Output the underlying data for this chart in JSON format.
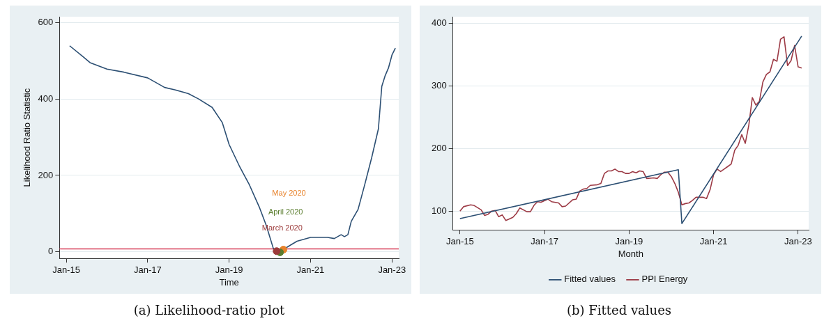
{
  "chart_data": [
    {
      "type": "line",
      "title": "(a) Likelihood-ratio plot",
      "xlabel": "Time",
      "ylabel": "Likelihood Ratio Statistic",
      "xlim": [
        "2014-11",
        "2023-03"
      ],
      "ylim": [
        -17,
        615
      ],
      "xticks": [
        {
          "value": "2015-01",
          "label": "Jan-15"
        },
        {
          "value": "2017-01",
          "label": "Jan-17"
        },
        {
          "value": "2019-01",
          "label": "Jan-19"
        },
        {
          "value": "2021-01",
          "label": "Jan-21"
        },
        {
          "value": "2023-01",
          "label": "Jan-23"
        }
      ],
      "yticks": [
        0,
        200,
        400,
        600
      ],
      "grid": "y",
      "legend": false,
      "ref_lines": [
        {
          "axis": "y",
          "value": 8,
          "color": "#d6405a"
        }
      ],
      "series": [
        {
          "type": "line",
          "color": "#2c4f73",
          "marker": "none",
          "x": [
            "2015-02",
            "2015-06",
            "2015-08",
            "2016-01",
            "2016-06",
            "2017-01",
            "2017-06",
            "2017-09",
            "2018-01",
            "2018-04",
            "2018-08",
            "2018-11",
            "2019-01",
            "2019-04",
            "2019-07",
            "2019-10",
            "2019-12",
            "2020-02",
            "2020-03",
            "2020-04",
            "2020-05",
            "2020-06",
            "2020-09",
            "2021-01",
            "2021-06",
            "2021-08",
            "2021-10",
            "2021-11",
            "2021-12",
            "2022-01",
            "2022-03",
            "2022-05",
            "2022-07",
            "2022-09",
            "2022-10",
            "2022-11",
            "2022-12",
            "2023-01",
            "2023-02"
          ],
          "values": [
            539,
            510,
            495,
            478,
            470,
            455,
            430,
            424,
            414,
            400,
            378,
            338,
            281,
            225,
            175,
            115,
            68,
            10,
            2,
            0,
            6,
            12,
            28,
            38,
            38,
            35,
            45,
            40,
            45,
            80,
            111,
            177,
            246,
            322,
            433,
            461,
            482,
            515,
            533
          ]
        },
        {
          "type": "scatter",
          "name": "March 2020",
          "color": "#9c3a3a",
          "marker": "circle",
          "x": [
            "2020-03"
          ],
          "values": [
            2
          ]
        },
        {
          "type": "scatter",
          "name": "April 2020",
          "color": "#5a7d2e",
          "marker": "circle",
          "x": [
            "2020-04"
          ],
          "values": [
            -1
          ]
        },
        {
          "type": "scatter",
          "name": "May 2020",
          "color": "#e8822a",
          "marker": "circle",
          "x": [
            "2020-05"
          ],
          "values": [
            6
          ]
        }
      ]
    },
    {
      "type": "line",
      "title": "(b) Fitted values",
      "xlabel": "Month",
      "xlim": [
        "2014-11",
        "2023-04"
      ],
      "ylim": [
        70,
        410
      ],
      "xticks": [
        {
          "value": "2015-01",
          "label": "Jan-15"
        },
        {
          "value": "2017-01",
          "label": "Jan-17"
        },
        {
          "value": "2019-01",
          "label": "Jan-19"
        },
        {
          "value": "2021-01",
          "label": "Jan-21"
        },
        {
          "value": "2023-01",
          "label": "Jan-23"
        }
      ],
      "yticks": [
        100,
        200,
        300,
        400
      ],
      "grid": "y",
      "legend": "bottom",
      "series": [
        {
          "type": "line",
          "name": "Fitted values",
          "color": "#2c4f73",
          "marker": "none",
          "x": [
            "2015-01",
            "2020-03",
            "2020-04",
            "2023-02"
          ],
          "values": [
            88,
            166,
            80,
            379
          ]
        },
        {
          "type": "line",
          "name": "PPI Energy",
          "color": "#9c3a45",
          "marker": "none",
          "x": [
            "2015-01",
            "2015-02",
            "2015-04",
            "2015-05",
            "2015-07",
            "2015-08",
            "2015-09",
            "2015-10",
            "2015-11",
            "2015-12",
            "2016-01",
            "2016-02",
            "2016-04",
            "2016-05",
            "2016-06",
            "2016-08",
            "2016-09",
            "2016-10",
            "2016-11",
            "2016-12",
            "2017-02",
            "2017-03",
            "2017-05",
            "2017-06",
            "2017-07",
            "2017-09",
            "2017-10",
            "2017-11",
            "2017-12",
            "2018-01",
            "2018-02",
            "2018-04",
            "2018-05",
            "2018-06",
            "2018-07",
            "2018-08",
            "2018-09",
            "2018-10",
            "2018-11",
            "2018-12",
            "2019-01",
            "2019-02",
            "2019-03",
            "2019-04",
            "2019-05",
            "2019-06",
            "2019-08",
            "2019-09",
            "2019-10",
            "2019-11",
            "2019-12",
            "2020-01",
            "2020-02",
            "2020-03",
            "2020-04",
            "2020-05",
            "2020-06",
            "2020-07",
            "2020-08",
            "2020-10",
            "2020-11",
            "2020-12",
            "2021-01",
            "2021-02",
            "2021-03",
            "2021-04",
            "2021-05",
            "2021-06",
            "2021-07",
            "2021-08",
            "2021-09",
            "2021-10",
            "2021-11",
            "2021-12",
            "2022-01",
            "2022-02",
            "2022-03",
            "2022-04",
            "2022-05",
            "2022-06",
            "2022-07",
            "2022-08",
            "2022-09",
            "2022-10",
            "2022-11",
            "2022-12",
            "2023-01",
            "2023-02"
          ],
          "values": [
            100,
            107,
            110,
            109,
            102,
            93,
            95,
            100,
            101,
            91,
            94,
            85,
            90,
            96,
            105,
            99,
            99,
            109,
            115,
            114,
            119,
            115,
            113,
            107,
            108,
            118,
            119,
            132,
            135,
            136,
            141,
            142,
            144,
            160,
            164,
            164,
            167,
            163,
            163,
            160,
            160,
            163,
            161,
            164,
            163,
            152,
            153,
            152,
            158,
            162,
            162,
            155,
            144,
            130,
            110,
            112,
            113,
            117,
            122,
            122,
            120,
            134,
            158,
            167,
            163,
            167,
            171,
            175,
            197,
            205,
            222,
            208,
            237,
            281,
            269,
            275,
            306,
            318,
            322,
            342,
            339,
            374,
            378,
            332,
            340,
            364,
            330,
            328
          ]
        }
      ]
    }
  ]
}
